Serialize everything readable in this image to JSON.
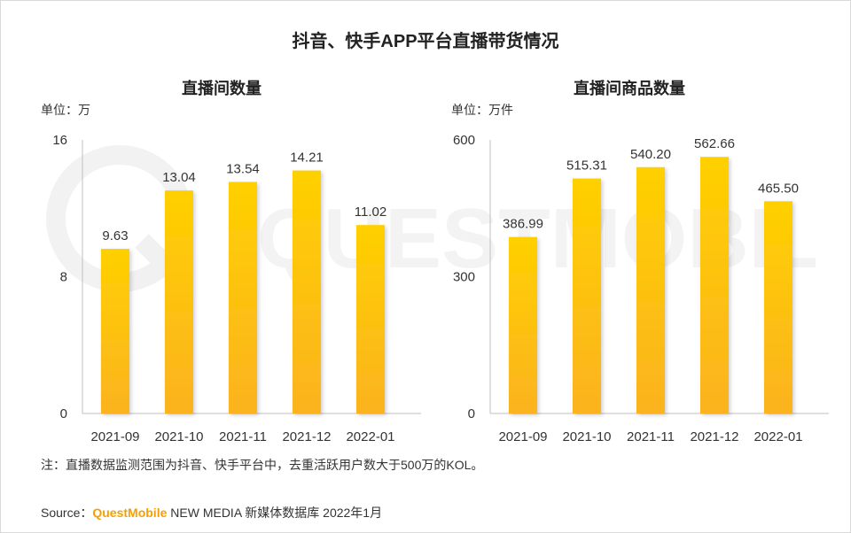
{
  "title": "抖音、快手APP平台直播带货情况",
  "watermark": "QUESTMOBILE",
  "chart_data": [
    {
      "type": "bar",
      "title": "直播间数量",
      "unit_label": "单位：万",
      "categories": [
        "2021-09",
        "2021-10",
        "2021-11",
        "2021-12",
        "2022-01"
      ],
      "values": [
        9.63,
        13.04,
        13.54,
        14.21,
        11.02
      ],
      "value_labels": [
        "9.63",
        "13.04",
        "13.54",
        "14.21",
        "11.02"
      ],
      "ylim": [
        0,
        16
      ],
      "yticks": [
        0,
        8,
        16
      ],
      "ytick_labels": [
        "0",
        "8",
        "16"
      ],
      "xlabel": "",
      "ylabel": "",
      "bar_color_top": "#ffd000",
      "bar_color_bottom": "#fbb320"
    },
    {
      "type": "bar",
      "title": "直播间商品数量",
      "unit_label": "单位：万件",
      "categories": [
        "2021-09",
        "2021-10",
        "2021-11",
        "2021-12",
        "2022-01"
      ],
      "values": [
        386.99,
        515.31,
        540.2,
        562.66,
        465.5
      ],
      "value_labels": [
        "386.99",
        "515.31",
        "540.20",
        "562.66",
        "465.50"
      ],
      "ylim": [
        0,
        600
      ],
      "yticks": [
        0,
        300,
        600
      ],
      "ytick_labels": [
        "0",
        "300",
        "600"
      ],
      "xlabel": "",
      "ylabel": "",
      "bar_color_top": "#ffd000",
      "bar_color_bottom": "#fbb320"
    }
  ],
  "note": "注：直播数据监测范围为抖音、快手平台中，去重活跃用户数大于500万的KOL。",
  "source": {
    "prefix": "Source：",
    "brand": "QuestMobile",
    "rest": " NEW MEDIA 新媒体数据库 2022年1月"
  }
}
